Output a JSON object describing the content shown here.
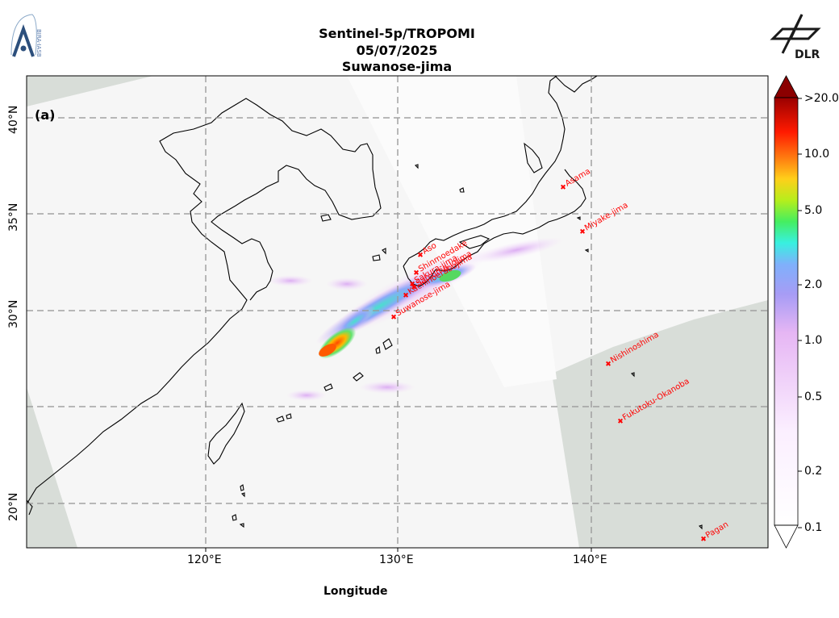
{
  "title": {
    "line1": "Sentinel-5p/TROPOMI",
    "line2": "05/07/2025",
    "line3": "Suwanose-jima"
  },
  "logos": {
    "left_text": "BIRA-IASB",
    "right_text": "DLR"
  },
  "panel_label": "(a)",
  "x_axis": {
    "title": "Longitude",
    "ticks": [
      "120°E",
      "130°E",
      "140°E"
    ]
  },
  "y_axis": {
    "ticks": [
      "40°N",
      "35°N",
      "30°N",
      "20°N"
    ]
  },
  "colorbar": {
    "scale": "log",
    "range": [
      0.1,
      20.0
    ],
    "extend": "both",
    "ticks": [
      "0.1",
      "0.2",
      "0.5",
      "1.0",
      "2.0",
      "5.0",
      "10.0",
      ">20.0"
    ]
  },
  "volcanoes": [
    {
      "name": "Asama"
    },
    {
      "name": "Miyake-jima"
    },
    {
      "name": "Aso"
    },
    {
      "name": "Shinmoedake"
    },
    {
      "name": "Sakura-jima"
    },
    {
      "name": "Kuchinoerabujima"
    },
    {
      "name": "Satsuma-Iojima"
    },
    {
      "name": "Suwanose-jima"
    },
    {
      "name": "Nishinoshima"
    },
    {
      "name": "Fukutoku-Okanoba"
    },
    {
      "name": "Pagan"
    }
  ],
  "colors": {
    "land_outline": "#000000",
    "volcano_marker": "#ff0000",
    "outside_swath": "#d8ddd8",
    "grid": "#999999"
  }
}
